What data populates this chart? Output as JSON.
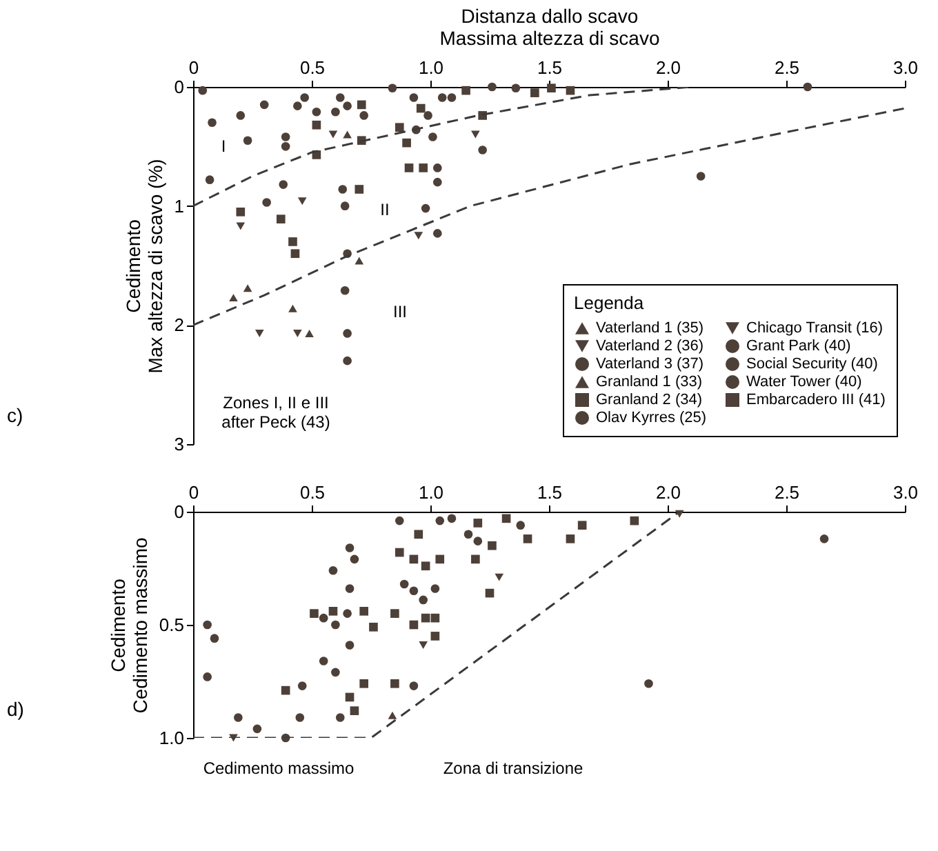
{
  "chart_data": [
    {
      "type": "scatter",
      "xlabel": "Distanza dallo scavo\nMassima altezza di scavo",
      "ylabel": "Cedimento\nMax altezza di scavo (%)",
      "legend_title": "Legenda",
      "legend": "bottom right",
      "grid": false,
      "xlim": [
        0,
        3
      ],
      "xticks": [
        0,
        {
          "value": 0.5,
          "label": "0.5"
        },
        {
          "value": 1,
          "label": "1.0"
        },
        {
          "value": 1.5,
          "label": "1.5"
        },
        {
          "value": 2,
          "label": "2.0"
        },
        {
          "value": 2.5,
          "label": "2.5"
        },
        {
          "value": 3,
          "label": "3.0"
        }
      ],
      "ylim": [
        3,
        0
      ],
      "yticks": [
        0,
        1,
        2,
        3
      ],
      "series": [
        {
          "name": "Vaterland 1 (35)",
          "color": "#4d4038",
          "marker": "triangle",
          "x": [
            0.17,
            0.23,
            0.42,
            0.49,
            0.7
          ],
          "values": [
            1.77,
            1.69,
            1.86,
            2.07,
            1.46
          ]
        },
        {
          "name": "Vaterland 2 (36)",
          "color": "#4d4038",
          "marker": "triangle-down",
          "x": [
            0.2,
            0.46,
            0.28,
            0.44,
            0.95
          ],
          "values": [
            1.17,
            0.96,
            2.07,
            2.07,
            1.25
          ]
        },
        {
          "name": "Vaterland 3 (37)",
          "color": "#4d4038",
          "marker": "circle",
          "x": [
            0.07,
            0.31,
            0.38,
            0.64,
            0.65,
            0.64,
            0.65,
            0.65,
            0.98,
            1.03
          ],
          "values": [
            0.78,
            0.97,
            0.82,
            1.0,
            1.4,
            1.71,
            2.07,
            2.3,
            1.02,
            1.23
          ]
        },
        {
          "name": "Granland 1 (33)",
          "color": "#4d4038",
          "marker": "triangle",
          "x": [
            0.65
          ],
          "values": [
            0.4
          ]
        },
        {
          "name": "Granland 2 (34)",
          "color": "#4d4038",
          "marker": "square",
          "x": [
            0.2,
            0.37,
            0.42,
            0.43,
            0.7
          ],
          "values": [
            1.05,
            1.11,
            1.3,
            1.4,
            0.86
          ]
        },
        {
          "name": "Olav Kyrres (25)",
          "color": "#4d4038",
          "marker": "circle",
          "x": [
            0.08,
            0.2,
            0.23,
            0.04,
            0.3,
            0.63,
            0.84,
            1.05
          ],
          "values": [
            0.3,
            0.24,
            0.45,
            0.03,
            0.15,
            0.86,
            0.01,
            0.09
          ]
        },
        {
          "name": "Chicago Transit (16)",
          "color": "#4d4038",
          "marker": "triangle-down",
          "x": [
            0.59,
            1.19
          ],
          "values": [
            0.4,
            0.4
          ]
        },
        {
          "name": "Grant Park (40)",
          "color": "#4d4038",
          "marker": "circle",
          "x": [
            0.39,
            0.39,
            1.09
          ],
          "values": [
            0.42,
            0.5,
            0.09
          ]
        },
        {
          "name": "Social Security (40)",
          "color": "#4d4038",
          "marker": "circle",
          "x": [
            0.47,
            0.44,
            1.03,
            1.03,
            2.14,
            2.59
          ],
          "values": [
            0.09,
            0.16,
            0.68,
            0.8,
            0.75,
            0.0
          ]
        },
        {
          "color": "#4d4038",
          "marker": "circle",
          "x": [
            0.52,
            0.6,
            0.72,
            0.93,
            0.99,
            1.22
          ],
          "values": [
            0.21,
            0.21,
            0.24,
            0.09,
            0.24,
            0.53
          ]
        },
        {
          "color": "#4d4038",
          "marker": "square",
          "x": [
            0.52,
            0.71,
            0.96,
            0.87,
            1.15
          ],
          "values": [
            0.32,
            0.15,
            0.18,
            0.34,
            0.03
          ]
        },
        {
          "name": "Water Tower (40)",
          "color": "#4d4038",
          "marker": "circle",
          "x": [
            0.62,
            0.65,
            0.94,
            1.01,
            1.26,
            1.36
          ],
          "values": [
            0.09,
            0.16,
            0.36,
            0.42,
            0.0,
            0.01
          ]
        },
        {
          "name": "Embarcadero III (41)",
          "color": "#4d4038",
          "marker": "square",
          "x": [
            0.52,
            0.71,
            0.91,
            0.97,
            0.9,
            1.22,
            1.44,
            1.51,
            1.59
          ],
          "values": [
            0.57,
            0.45,
            0.68,
            0.68,
            0.47,
            0.24,
            0.05,
            0.01,
            0.03
          ]
        },
        {
          "type": "line",
          "line_style": "dashed",
          "color": "#3a3a3a",
          "x": [
            0,
            0.25,
            0.5,
            1.2,
            1.67,
            2.1
          ],
          "values": [
            1.0,
            0.75,
            0.55,
            0.24,
            0.07,
            0.0
          ]
        },
        {
          "type": "line",
          "line_style": "dashed",
          "color": "#3a3a3a",
          "x": [
            0,
            0.3,
            0.65,
            1.17,
            1.84,
            2.5,
            3.0
          ],
          "values": [
            2.0,
            1.75,
            1.42,
            1.0,
            0.65,
            0.38,
            0.18
          ]
        }
      ],
      "annotations": [
        "c)",
        "I",
        "II",
        "III",
        "Zones I, II e III\nafter Peck (43)"
      ]
    },
    {
      "type": "scatter",
      "ylabel": "Cedimento\nCedimento massimo",
      "grid": false,
      "xlim": [
        0,
        3
      ],
      "xticks": [
        0,
        {
          "value": 0.5,
          "label": "0.5"
        },
        {
          "value": 1,
          "label": "1.0"
        },
        {
          "value": 1.5,
          "label": "1.5"
        },
        {
          "value": 2,
          "label": "2.0"
        },
        {
          "value": 2.5,
          "label": "2.5"
        },
        {
          "value": 3,
          "label": "3.0"
        }
      ],
      "ylim": [
        1,
        0
      ],
      "yticks": [
        0,
        {
          "value": 0.5,
          "label": "0.5"
        },
        {
          "value": 1,
          "label": "1.0"
        }
      ],
      "series": [
        {
          "color": "#4d4038",
          "marker": "triangle",
          "x": [
            0.84
          ],
          "values": [
            0.9
          ]
        },
        {
          "color": "#4d4038",
          "marker": "triangle-down",
          "x": [
            0.17,
            0.97
          ],
          "values": [
            1.0,
            0.59
          ]
        },
        {
          "color": "#4d4038",
          "marker": "circle",
          "x": [
            0.06,
            0.66,
            0.93,
            1.92,
            2.66
          ],
          "values": [
            0.73,
            0.59,
            0.77,
            0.76,
            0.12
          ]
        },
        {
          "color": "#4d4038",
          "marker": "square",
          "x": [
            0.72,
            0.85
          ],
          "values": [
            0.76,
            0.76
          ]
        },
        {
          "color": "#4d4038",
          "marker": "circle",
          "x": [
            0.06,
            0.09,
            0.46,
            0.62,
            0.66
          ],
          "values": [
            0.5,
            0.56,
            0.77,
            0.91,
            0.34
          ]
        },
        {
          "color": "#4d4038",
          "marker": "triangle-down",
          "x": [
            1.29,
            2.05
          ],
          "values": [
            0.29,
            0.01
          ]
        },
        {
          "color": "#4d4038",
          "marker": "circle",
          "x": [
            0.27,
            0.45
          ],
          "values": [
            0.96,
            0.91
          ]
        },
        {
          "color": "#4d4038",
          "marker": "circle",
          "x": [
            0.59,
            0.66,
            0.68,
            0.87
          ],
          "values": [
            0.26,
            0.16,
            0.21,
            0.04
          ]
        },
        {
          "color": "#4d4038",
          "marker": "circle",
          "x": [
            0.19,
            0.39,
            0.55,
            0.6,
            0.89,
            0.93,
            1.04,
            1.09
          ],
          "values": [
            0.91,
            1.0,
            0.66,
            0.71,
            0.32,
            0.35,
            0.04,
            0.03
          ]
        },
        {
          "color": "#4d4038",
          "marker": "square",
          "x": [
            0.39,
            0.66,
            0.68,
            0.51,
            0.59,
            0.98,
            1.2,
            1.32
          ],
          "values": [
            0.79,
            0.82,
            0.88,
            0.45,
            0.44,
            0.47,
            0.05,
            0.03
          ]
        },
        {
          "color": "#4d4038",
          "marker": "circle",
          "x": [
            0.55,
            0.6,
            0.65,
            0.97,
            1.02,
            1.16,
            1.2,
            1.38
          ],
          "values": [
            0.47,
            0.5,
            0.45,
            0.39,
            0.34,
            0.1,
            0.13,
            0.06
          ]
        },
        {
          "color": "#4d4038",
          "marker": "square",
          "x": [
            0.72,
            0.76,
            0.85,
            0.93,
            1.02,
            1.02,
            0.87,
            0.93,
            0.98,
            1.04,
            0.95,
            1.19,
            1.26,
            1.41,
            1.25,
            1.59,
            1.64,
            1.86
          ],
          "values": [
            0.44,
            0.51,
            0.45,
            0.5,
            0.47,
            0.55,
            0.18,
            0.21,
            0.24,
            0.21,
            0.1,
            0.21,
            0.15,
            0.12,
            0.36,
            0.12,
            0.06,
            0.04
          ]
        },
        {
          "type": "line",
          "line_style": "dashed",
          "color": "#3a3a3a",
          "x": [
            0,
            0.75,
            2.05
          ],
          "values": [
            1.0,
            1.0,
            0.0
          ]
        }
      ],
      "annotations": [
        "d)",
        "Cedimento massimo",
        "Zona di transizione"
      ]
    }
  ]
}
